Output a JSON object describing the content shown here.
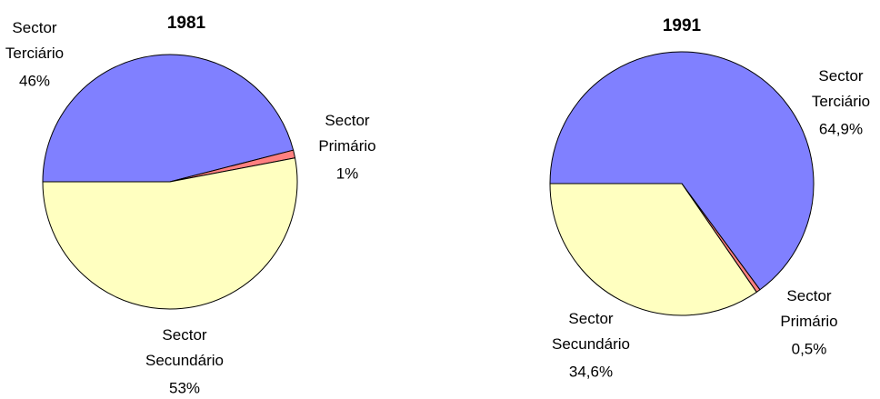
{
  "chart_data": [
    {
      "type": "pie",
      "title": "1981",
      "categories": [
        "Sector Terciário",
        "Sector Primário",
        "Sector Secundário"
      ],
      "values": [
        46,
        1,
        53
      ],
      "value_labels": [
        "46%",
        "1%",
        "53%"
      ],
      "colors": [
        "#8080ff",
        "#ff8080",
        "#ffffc0"
      ]
    },
    {
      "type": "pie",
      "title": "1991",
      "categories": [
        "Sector Terciário",
        "Sector Primário",
        "Sector Secundário"
      ],
      "values": [
        64.9,
        0.5,
        34.6
      ],
      "value_labels": [
        "64,9%",
        "0,5%",
        "34,6%"
      ],
      "colors": [
        "#8080ff",
        "#ff8080",
        "#ffffc0"
      ]
    }
  ]
}
